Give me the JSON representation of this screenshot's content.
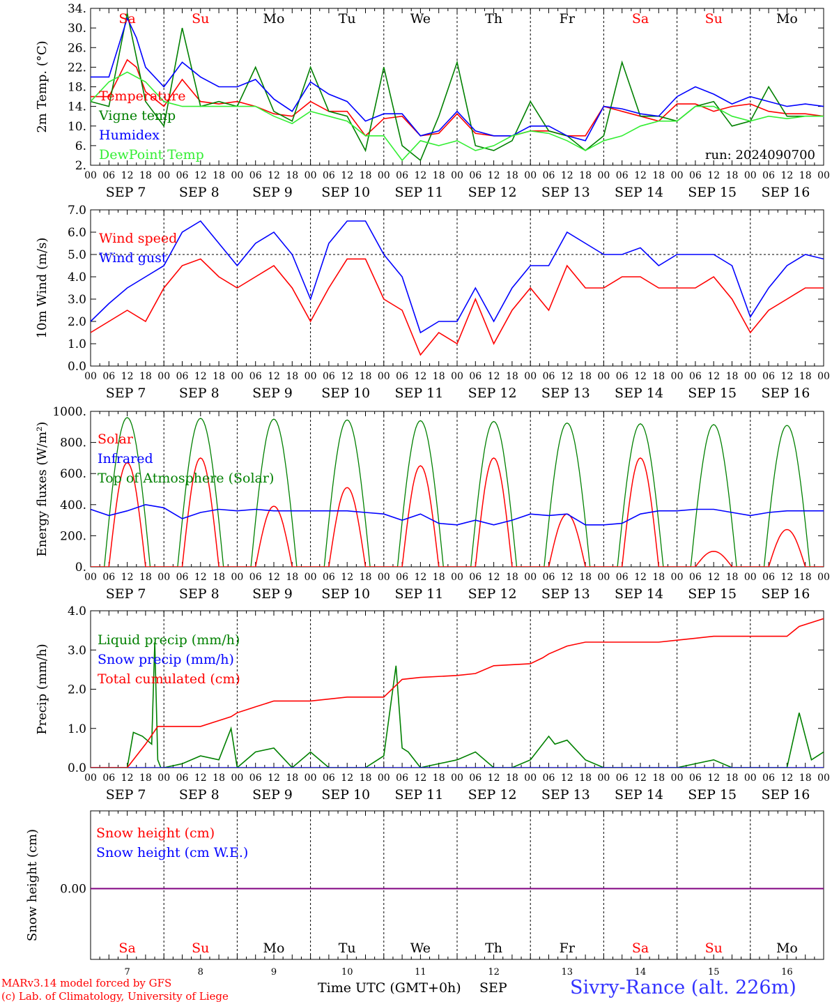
{
  "location": "Sivry-Rance (alt. 226m)",
  "credit_line1": "MARv3.14 model forced by GFS",
  "credit_line2": "(c) Lab. of Climatology, University of Liege",
  "x_axis_label": "Time UTC (GMT+0h)",
  "month_label": "SEP",
  "hour_ticks": [
    "00",
    "06",
    "12",
    "18"
  ],
  "date_labels": [
    "SEP  7",
    "SEP  8",
    "SEP  9",
    "SEP 10",
    "SEP 11",
    "SEP 12",
    "SEP 13",
    "SEP 14",
    "SEP 15",
    "SEP 16"
  ],
  "day_numbers": [
    "7",
    "8",
    "9",
    "10",
    "11",
    "12",
    "13",
    "14",
    "15",
    "16"
  ],
  "weekdays": [
    {
      "label": "Sa",
      "color": "#ff0000"
    },
    {
      "label": "Su",
      "color": "#ff0000"
    },
    {
      "label": "Mo",
      "color": "#000000"
    },
    {
      "label": "Tu",
      "color": "#000000"
    },
    {
      "label": "We",
      "color": "#000000"
    },
    {
      "label": "Th",
      "color": "#000000"
    },
    {
      "label": "Fr",
      "color": "#000000"
    },
    {
      "label": "Sa",
      "color": "#ff0000"
    },
    {
      "label": "Su",
      "color": "#ff0000"
    },
    {
      "label": "Mo",
      "color": "#000000"
    }
  ],
  "chart_data": [
    {
      "type": "line",
      "ylabel": "2m Temp. (°C)",
      "ylim": [
        2,
        34
      ],
      "yticks": [
        "2.",
        "6.",
        "10.",
        "14.",
        "18.",
        "22.",
        "26.",
        "30.",
        "34."
      ],
      "annotation": "run: 2024090700",
      "x_units": "hours since SEP 7 00 UTC",
      "series": [
        {
          "name": "Temperature",
          "color": "#ff0000",
          "x": [
            0,
            6,
            12,
            15,
            18,
            24,
            30,
            36,
            42,
            48,
            54,
            60,
            66,
            72,
            78,
            84,
            90,
            96,
            102,
            108,
            114,
            120,
            126,
            132,
            138,
            144,
            150,
            156,
            162,
            168,
            174,
            180,
            186,
            192,
            198,
            204,
            210,
            216,
            222,
            228,
            234,
            240
          ],
          "y": [
            16,
            16,
            23.5,
            22,
            17,
            14,
            19.5,
            15,
            14.5,
            15,
            14,
            12.5,
            12,
            15,
            13,
            13,
            8,
            11.5,
            12,
            8,
            8.5,
            12.5,
            8.5,
            8,
            8,
            9,
            9,
            8,
            8,
            14,
            13,
            12,
            11,
            14.5,
            14.5,
            13,
            14,
            14.5,
            13,
            12.5,
            12.5,
            12
          ]
        },
        {
          "name": "Vigne temp",
          "color": "#008000",
          "x": [
            0,
            6,
            12,
            18,
            24,
            30,
            36,
            42,
            48,
            54,
            60,
            66,
            72,
            78,
            84,
            90,
            96,
            102,
            108,
            114,
            120,
            126,
            132,
            138,
            144,
            150,
            156,
            162,
            168,
            174,
            180,
            186,
            192,
            198,
            204,
            210,
            216,
            222,
            228,
            234,
            240
          ],
          "y": [
            15,
            14,
            33,
            15,
            10,
            30,
            14,
            15,
            14,
            22,
            13,
            11,
            22,
            13,
            12,
            5,
            22,
            6,
            3,
            12,
            23,
            6,
            5,
            7,
            15,
            9,
            8,
            5,
            8,
            23,
            12,
            12,
            11,
            14,
            15,
            10,
            11,
            18,
            12,
            12,
            12
          ]
        },
        {
          "name": "Humidex",
          "color": "#0000ff",
          "x": [
            0,
            6,
            12,
            15,
            18,
            24,
            30,
            36,
            42,
            48,
            54,
            60,
            66,
            72,
            78,
            84,
            90,
            96,
            102,
            108,
            114,
            120,
            126,
            132,
            138,
            144,
            150,
            156,
            162,
            168,
            174,
            180,
            186,
            192,
            198,
            204,
            210,
            216,
            222,
            228,
            234,
            240
          ],
          "y": [
            20,
            20,
            32,
            28,
            22,
            18,
            23,
            20,
            18,
            18,
            19.5,
            15.5,
            13,
            19,
            16.5,
            15,
            11,
            12.5,
            12.5,
            8,
            9,
            13,
            9,
            8,
            8,
            10,
            10,
            8,
            7,
            14,
            13.5,
            12.5,
            12,
            16,
            18,
            16.5,
            14.5,
            16,
            15,
            14,
            14.5,
            14
          ]
        },
        {
          "name": "DewPoint Temp",
          "color": "#33ee33",
          "x": [
            0,
            6,
            12,
            18,
            24,
            30,
            36,
            42,
            48,
            54,
            60,
            66,
            72,
            78,
            84,
            90,
            96,
            102,
            108,
            114,
            120,
            126,
            132,
            138,
            144,
            150,
            156,
            162,
            168,
            174,
            180,
            186,
            192,
            198,
            204,
            210,
            216,
            222,
            228,
            234,
            240
          ],
          "y": [
            15,
            19,
            21,
            19,
            15,
            14,
            14,
            14,
            14,
            14,
            12,
            10.5,
            13,
            12,
            11,
            8,
            8,
            3,
            7,
            6,
            7,
            5,
            6,
            8,
            9,
            8.5,
            7,
            5,
            7,
            8,
            10,
            11,
            11,
            14,
            14,
            12,
            11,
            12,
            11.5,
            12,
            12
          ]
        }
      ]
    },
    {
      "type": "line",
      "ylabel": "10m Wind (m/s)",
      "ylim": [
        0,
        7
      ],
      "yticks": [
        "0.0",
        "1.0",
        "2.0",
        "3.0",
        "4.0",
        "5.0",
        "6.0",
        "7.0"
      ],
      "reference_line": 5.0,
      "x_units": "hours since SEP 7 00 UTC",
      "series": [
        {
          "name": "Wind speed",
          "color": "#ff0000",
          "x": [
            0,
            6,
            12,
            18,
            24,
            30,
            36,
            42,
            48,
            54,
            60,
            66,
            72,
            78,
            84,
            90,
            96,
            102,
            108,
            114,
            120,
            126,
            132,
            138,
            144,
            150,
            156,
            162,
            168,
            174,
            180,
            186,
            192,
            198,
            204,
            210,
            216,
            222,
            228,
            234,
            240
          ],
          "y": [
            1.5,
            2,
            2.5,
            2,
            3.5,
            4.5,
            4.8,
            4,
            3.5,
            4,
            4.5,
            3.5,
            2,
            3.5,
            4.8,
            4.8,
            3,
            2.5,
            0.5,
            1.5,
            1.0,
            3.0,
            1.0,
            2.5,
            3.5,
            2.5,
            4.5,
            3.5,
            3.5,
            4.0,
            4.0,
            3.5,
            3.5,
            3.5,
            4.0,
            3.0,
            1.5,
            2.5,
            3.0,
            3.5,
            3.5
          ]
        },
        {
          "name": "Wind gust",
          "color": "#0000ff",
          "x": [
            0,
            6,
            12,
            18,
            24,
            30,
            36,
            42,
            48,
            54,
            60,
            66,
            72,
            78,
            84,
            90,
            96,
            102,
            108,
            114,
            120,
            126,
            132,
            138,
            144,
            150,
            156,
            162,
            168,
            174,
            180,
            186,
            192,
            198,
            204,
            210,
            216,
            222,
            228,
            234,
            240
          ],
          "y": [
            2.0,
            2.8,
            3.5,
            4.0,
            4.5,
            6.0,
            6.5,
            5.5,
            4.5,
            5.5,
            6.0,
            5.0,
            3.0,
            5.5,
            6.5,
            6.5,
            5.0,
            4.0,
            1.5,
            2.0,
            2.0,
            3.5,
            2.0,
            3.5,
            4.5,
            4.5,
            6.0,
            5.5,
            5.0,
            5.0,
            5.3,
            4.5,
            5.0,
            5.0,
            5.0,
            4.5,
            2.2,
            3.5,
            4.5,
            5.0,
            4.8
          ]
        }
      ]
    },
    {
      "type": "line",
      "ylabel": "Energy fluxes (W/m²)",
      "ylim": [
        0,
        1000
      ],
      "yticks": [
        "0.",
        "200.",
        "400.",
        "600.",
        "800.",
        "1000."
      ],
      "x_units": "hours since SEP 7 00 UTC",
      "daily_peaks": {
        "Solar": [
          670,
          700,
          390,
          510,
          650,
          700,
          340,
          700,
          100,
          240
        ],
        "Top of Atmosphere (Solar)": [
          960,
          955,
          950,
          945,
          940,
          935,
          925,
          920,
          915,
          910
        ]
      },
      "series": [
        {
          "name": "Infrared",
          "color": "#0000ff",
          "x": [
            0,
            6,
            12,
            18,
            24,
            30,
            36,
            42,
            48,
            54,
            60,
            66,
            72,
            78,
            84,
            90,
            96,
            102,
            108,
            114,
            120,
            126,
            132,
            138,
            144,
            150,
            156,
            162,
            168,
            174,
            180,
            186,
            192,
            198,
            204,
            210,
            216,
            222,
            228,
            234,
            240
          ],
          "y": [
            370,
            330,
            360,
            400,
            380,
            310,
            350,
            370,
            360,
            370,
            360,
            360,
            360,
            360,
            360,
            350,
            340,
            300,
            340,
            280,
            270,
            300,
            270,
            300,
            340,
            330,
            340,
            270,
            270,
            280,
            340,
            360,
            360,
            370,
            370,
            350,
            330,
            350,
            360,
            360,
            360
          ]
        }
      ]
    },
    {
      "type": "line",
      "ylabel": "Precip (mm/h)",
      "ylim": [
        0,
        4
      ],
      "yticks": [
        "0.0",
        "1.0",
        "2.0",
        "3.0",
        "4.0"
      ],
      "x_units": "hours since SEP 7 00 UTC",
      "series": [
        {
          "name": "Liquid precip (mm/h)",
          "color": "#008000",
          "x": [
            0,
            12,
            14,
            17,
            20,
            21,
            22,
            23,
            24,
            30,
            36,
            42,
            46,
            48,
            54,
            60,
            66,
            72,
            78,
            90,
            96,
            100,
            102,
            104,
            108,
            114,
            120,
            126,
            132,
            138,
            144,
            150,
            152,
            156,
            162,
            168,
            174,
            180,
            186,
            192,
            198,
            204,
            210,
            216,
            228,
            232,
            236,
            240
          ],
          "y": [
            0,
            0,
            0.9,
            0.8,
            0.6,
            3.2,
            0.2,
            0,
            0,
            0.1,
            0.3,
            0.2,
            1.0,
            0,
            0.4,
            0.5,
            0,
            0.4,
            0,
            0,
            0.3,
            2.6,
            0.5,
            0.4,
            0,
            0.1,
            0.2,
            0.4,
            0,
            0,
            0.2,
            0.8,
            0.6,
            0.7,
            0.2,
            0,
            0,
            0,
            0,
            0,
            0.1,
            0.2,
            0,
            0,
            0,
            1.4,
            0.2,
            0.4
          ]
        },
        {
          "name": "Snow precip (mm/h)",
          "color": "#0000ff",
          "x": [
            0,
            240
          ],
          "y": [
            0,
            0
          ]
        },
        {
          "name": "Total cumulated (cm)",
          "color": "#ff0000",
          "x": [
            0,
            12,
            18,
            22,
            24,
            36,
            42,
            46,
            48,
            54,
            60,
            72,
            84,
            96,
            100,
            102,
            108,
            120,
            126,
            132,
            144,
            148,
            150,
            156,
            162,
            168,
            174,
            180,
            186,
            192,
            198,
            204,
            210,
            216,
            228,
            232,
            236,
            240
          ],
          "y": [
            0,
            0,
            0.6,
            1.05,
            1.05,
            1.05,
            1.2,
            1.3,
            1.4,
            1.55,
            1.7,
            1.7,
            1.8,
            1.8,
            2.1,
            2.25,
            2.3,
            2.35,
            2.4,
            2.6,
            2.65,
            2.8,
            2.9,
            3.1,
            3.2,
            3.2,
            3.2,
            3.2,
            3.2,
            3.25,
            3.3,
            3.35,
            3.35,
            3.35,
            3.35,
            3.6,
            3.7,
            3.8
          ]
        }
      ]
    },
    {
      "type": "line",
      "ylabel": "Snow height (cm)",
      "yticks": [
        "0.00"
      ],
      "x_units": "hours since SEP 7 00 UTC",
      "series": [
        {
          "name": "Snow height (cm)",
          "color": "#ff0000",
          "x": [
            0,
            240
          ],
          "y": [
            0,
            0
          ]
        },
        {
          "name": "Snow height (cm W.E.)",
          "color": "#0000ff",
          "x": [
            0,
            240
          ],
          "y": [
            0,
            0
          ]
        }
      ]
    }
  ]
}
